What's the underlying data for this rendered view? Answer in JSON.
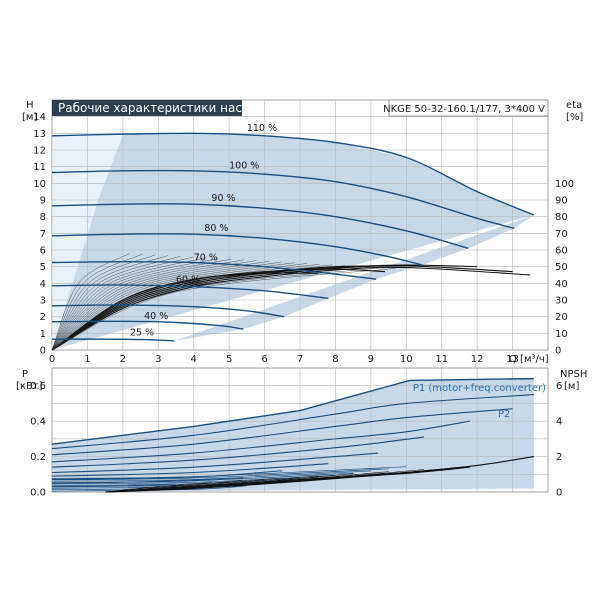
{
  "chart_data": [
    {
      "type": "line",
      "title": "Рабочие характеристики насоса",
      "model": "NKGE 50-32-160.1/177, 3*400 V",
      "xlabel": "Q [м³/ч]",
      "ylabel_left": "H",
      "ylabel_left_unit": "[м]",
      "ylabel_right": "eta",
      "ylabel_right_unit": "[%]",
      "xlim": [
        0,
        14
      ],
      "ylim_left": [
        0,
        15
      ],
      "ylim_right": [
        0,
        100
      ],
      "grid": true,
      "x_ticks": [
        "0",
        "1",
        "2",
        "3",
        "4",
        "5",
        "6",
        "7",
        "8",
        "9",
        "10",
        "11",
        "12",
        "13"
      ],
      "y_ticks_left": [
        "0",
        "1",
        "2",
        "3",
        "4",
        "5",
        "6",
        "7",
        "8",
        "9",
        "10",
        "11",
        "12",
        "13",
        "14"
      ],
      "y_ticks_right": [
        "0",
        "10",
        "20",
        "30",
        "40",
        "50",
        "60",
        "70",
        "80",
        "90",
        "100"
      ],
      "operating_area_color": "#c9d8e6",
      "curve_color": "#1b4f80",
      "head_curves": [
        {
          "label": "110 %",
          "points": [
            [
              0,
              12.85
            ],
            [
              2,
              12.95
            ],
            [
              4,
              13.0
            ],
            [
              6,
              12.85
            ],
            [
              8,
              12.45
            ],
            [
              10,
              11.55
            ],
            [
              12,
              9.5
            ],
            [
              13.6,
              8.1
            ]
          ]
        },
        {
          "label": "100 %",
          "points": [
            [
              0,
              10.65
            ],
            [
              2,
              10.75
            ],
            [
              4,
              10.75
            ],
            [
              6,
              10.55
            ],
            [
              8,
              10.1
            ],
            [
              10,
              9.2
            ],
            [
              12,
              7.9
            ],
            [
              13.05,
              7.3
            ]
          ]
        },
        {
          "label": "90 %",
          "points": [
            [
              0,
              8.65
            ],
            [
              2,
              8.75
            ],
            [
              4,
              8.75
            ],
            [
              6,
              8.5
            ],
            [
              8,
              8.0
            ],
            [
              10,
              7.15
            ],
            [
              11.75,
              6.1
            ]
          ]
        },
        {
          "label": "80 %",
          "points": [
            [
              0,
              6.85
            ],
            [
              2,
              6.95
            ],
            [
              4,
              6.95
            ],
            [
              6,
              6.7
            ],
            [
              8,
              6.2
            ],
            [
              9.5,
              5.6
            ],
            [
              10.45,
              5.1
            ]
          ]
        },
        {
          "label": "70 %",
          "points": [
            [
              0,
              5.25
            ],
            [
              2,
              5.3
            ],
            [
              4,
              5.25
            ],
            [
              6,
              5.0
            ],
            [
              8,
              4.55
            ],
            [
              9.15,
              4.25
            ]
          ]
        },
        {
          "label": "60 %",
          "points": [
            [
              0,
              3.85
            ],
            [
              2,
              3.9
            ],
            [
              4,
              3.8
            ],
            [
              6,
              3.55
            ],
            [
              7.8,
              3.1
            ]
          ]
        },
        {
          "label": "",
          "points": [
            [
              0,
              2.65
            ],
            [
              2,
              2.7
            ],
            [
              4,
              2.6
            ],
            [
              5.5,
              2.35
            ],
            [
              6.55,
              2.0
            ]
          ]
        },
        {
          "label": "40 %",
          "points": [
            [
              0,
              1.7
            ],
            [
              2,
              1.72
            ],
            [
              3.5,
              1.65
            ],
            [
              4.8,
              1.45
            ],
            [
              5.4,
              1.25
            ]
          ]
        },
        {
          "label": "25 %",
          "points": [
            [
              0,
              0.65
            ],
            [
              1.5,
              0.65
            ],
            [
              2.7,
              0.62
            ],
            [
              3.45,
              0.55
            ]
          ]
        }
      ],
      "efficiency_curves": [
        {
          "points": [
            [
              0,
              0
            ],
            [
              2,
              25
            ],
            [
              4,
              38
            ],
            [
              6,
              44
            ],
            [
              8,
              48
            ],
            [
              10,
              49.5
            ],
            [
              13.5,
              45
            ]
          ]
        },
        {
          "points": [
            [
              0,
              0
            ],
            [
              2,
              26
            ],
            [
              4,
              39
            ],
            [
              6,
              45
            ],
            [
              8,
              49
            ],
            [
              10,
              50.5
            ],
            [
              13.0,
              47
            ]
          ]
        },
        {
          "points": [
            [
              0,
              0
            ],
            [
              2,
              27
            ],
            [
              4,
              40
            ],
            [
              6,
              46
            ],
            [
              8,
              49.5
            ],
            [
              10,
              51
            ],
            [
              12,
              50
            ]
          ]
        },
        {
          "points": [
            [
              0,
              0
            ],
            [
              2,
              28
            ],
            [
              4,
              41
            ],
            [
              6,
              46.5
            ],
            [
              8,
              50
            ],
            [
              10,
              50.5
            ]
          ]
        },
        {
          "points": [
            [
              0,
              0
            ],
            [
              2,
              29
            ],
            [
              4,
              42
            ],
            [
              6,
              47
            ],
            [
              8,
              48.5
            ],
            [
              9.4,
              47
            ]
          ]
        },
        {
          "points": [
            [
              0,
              0
            ],
            [
              2,
              30
            ],
            [
              4,
              42.5
            ],
            [
              6,
              46
            ],
            [
              7.5,
              46
            ]
          ]
        }
      ],
      "speed_labels": [
        "110 %",
        "100 %",
        "90 %",
        "80 %",
        "70 %",
        "60 %",
        "40 %",
        "25 %"
      ]
    },
    {
      "type": "line",
      "ylabel_left": "P",
      "ylabel_left_unit": "[кВт]",
      "ylabel_right": "NPSH",
      "ylabel_right_unit": "[м]",
      "xlim": [
        0,
        14
      ],
      "ylim_left": [
        0,
        0.7
      ],
      "ylim_right": [
        0,
        7
      ],
      "grid": true,
      "y_ticks_left": [
        "0.0",
        "0.2",
        "0.4",
        "0.6"
      ],
      "y_ticks_right": [
        "0",
        "2",
        "4",
        "6"
      ],
      "legend": [
        {
          "name": "P1 (motor+freq.converter)",
          "color": "#2a6fb0"
        },
        {
          "name": "P2",
          "color": "#2a6fb0"
        }
      ],
      "power_area_top": [
        [
          0,
          0.27
        ],
        [
          4,
          0.37
        ],
        [
          7,
          0.46
        ],
        [
          10.1,
          0.63
        ],
        [
          13.6,
          0.64
        ]
      ],
      "power_curves": [
        {
          "points": [
            [
              0,
              0.245
            ],
            [
              4,
              0.32
            ],
            [
              8,
              0.44
            ],
            [
              10,
              0.5
            ],
            [
              13.6,
              0.55
            ]
          ]
        },
        {
          "points": [
            [
              0,
              0.21
            ],
            [
              4,
              0.27
            ],
            [
              8,
              0.37
            ],
            [
              10,
              0.42
            ],
            [
              13.0,
              0.47
            ]
          ]
        },
        {
          "points": [
            [
              0,
              0.17
            ],
            [
              4,
              0.22
            ],
            [
              8,
              0.3
            ],
            [
              10,
              0.34
            ],
            [
              11.8,
              0.4
            ]
          ]
        },
        {
          "points": [
            [
              0,
              0.14
            ],
            [
              4,
              0.18
            ],
            [
              8,
              0.25
            ],
            [
              10.5,
              0.31
            ]
          ]
        },
        {
          "points": [
            [
              0,
              0.11
            ],
            [
              4,
              0.14
            ],
            [
              8,
              0.2
            ],
            [
              9.2,
              0.22
            ]
          ]
        },
        {
          "points": [
            [
              0,
              0.09
            ],
            [
              4,
              0.11
            ],
            [
              7.8,
              0.16
            ]
          ]
        },
        {
          "points": [
            [
              0,
              0.07
            ],
            [
              4,
              0.085
            ],
            [
              6.5,
              0.12
            ]
          ]
        },
        {
          "points": [
            [
              0,
              0.05
            ],
            [
              3,
              0.06
            ],
            [
              5.4,
              0.08
            ]
          ]
        },
        {
          "points": [
            [
              0,
              0.03
            ],
            [
              2,
              0.035
            ],
            [
              3.5,
              0.045
            ]
          ]
        }
      ],
      "npsh_curves": [
        {
          "points": [
            [
              1.5,
              0.0
            ],
            [
              4,
              0.2
            ],
            [
              7,
              0.6
            ],
            [
              10,
              1.1
            ],
            [
              12,
              1.5
            ],
            [
              13.6,
              2.0
            ]
          ]
        },
        {
          "points": [
            [
              1.5,
              0.0
            ],
            [
              4,
              0.25
            ],
            [
              7,
              0.65
            ],
            [
              10,
              1.05
            ],
            [
              11.8,
              1.4
            ]
          ]
        },
        {
          "points": [
            [
              1.5,
              0.0
            ],
            [
              4,
              0.3
            ],
            [
              7,
              0.7
            ],
            [
              10,
              1.1
            ],
            [
              11.5,
              1.35
            ]
          ]
        }
      ]
    }
  ]
}
